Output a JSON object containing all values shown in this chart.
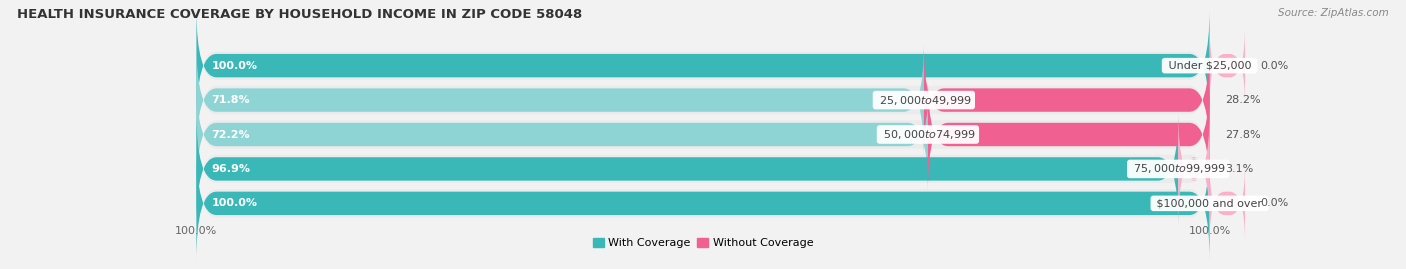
{
  "title": "HEALTH INSURANCE COVERAGE BY HOUSEHOLD INCOME IN ZIP CODE 58048",
  "source": "Source: ZipAtlas.com",
  "categories": [
    "Under $25,000",
    "$25,000 to $49,999",
    "$50,000 to $74,999",
    "$75,000 to $99,999",
    "$100,000 and over"
  ],
  "with_coverage": [
    100.0,
    71.8,
    72.2,
    96.9,
    100.0
  ],
  "without_coverage": [
    0.0,
    28.2,
    27.8,
    3.1,
    0.0
  ],
  "color_with_dark": "#3ab8b8",
  "color_with_light": "#8ed4d4",
  "color_without_dark": "#f06090",
  "color_without_light": "#f9b0c8",
  "bar_bg_color": "#e0e0e0",
  "row_bg_color": "#ebebeb",
  "fig_bg_color": "#f2f2f2",
  "label_fontsize": 8.0,
  "title_fontsize": 9.5,
  "source_fontsize": 7.5,
  "dark_threshold": 85
}
